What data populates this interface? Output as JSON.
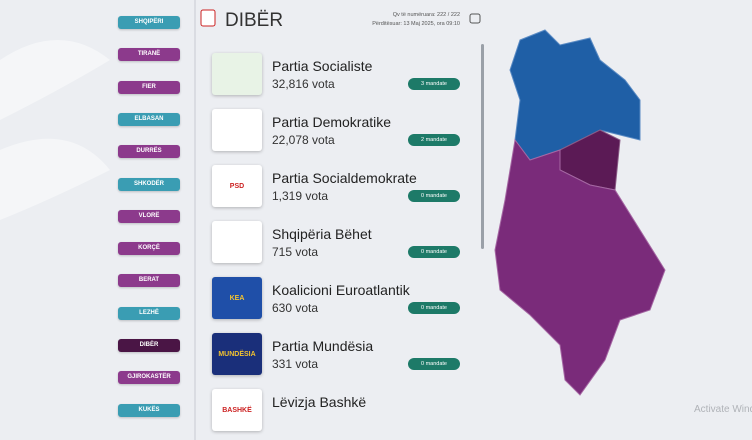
{
  "nav": [
    {
      "label": "SHQIPËRI",
      "kind": "national"
    },
    {
      "label": "TIRANË",
      "kind": "region"
    },
    {
      "label": "FIER",
      "kind": "region"
    },
    {
      "label": "ELBASAN",
      "kind": "national"
    },
    {
      "label": "DURRËS",
      "kind": "region"
    },
    {
      "label": "SHKODËR",
      "kind": "national"
    },
    {
      "label": "VLORË",
      "kind": "region"
    },
    {
      "label": "KORÇË",
      "kind": "region"
    },
    {
      "label": "BERAT",
      "kind": "region"
    },
    {
      "label": "LEZHË",
      "kind": "national"
    },
    {
      "label": "DIBËR",
      "kind": "active"
    },
    {
      "label": "GJIROKASTËR",
      "kind": "region"
    },
    {
      "label": "KUKËS",
      "kind": "national"
    }
  ],
  "header": {
    "title": "DIBËR",
    "counted": "Qv të numëruara: 222 / 222",
    "updated": "Përditësuar: 13 Maj 2025, ora 09:10"
  },
  "parties": [
    {
      "name": "Partia Socialiste",
      "votes": "32,816 vota",
      "mandates": "3 mandate",
      "logo_color": "#e8f3e6"
    },
    {
      "name": "Partia Demokratike",
      "votes": "22,078 vota",
      "mandates": "2 mandate",
      "logo_color": "#ffffff"
    },
    {
      "name": "Partia Socialdemokrate",
      "votes": "1,319 vota",
      "mandates": "0 mandate",
      "logo_color": "#ffffff",
      "logo_text": "PSD"
    },
    {
      "name": "Shqipëria Bëhet",
      "votes": "715 vota",
      "mandates": "0 mandate",
      "logo_color": "#ffffff"
    },
    {
      "name": "Koalicioni Euroatlantik",
      "votes": "630 vota",
      "mandates": "0 mandate",
      "logo_color": "#1f4fa8",
      "logo_text": "KEA"
    },
    {
      "name": "Partia Mundësia",
      "votes": "331 vota",
      "mandates": "0 mandate",
      "logo_color": "#1a2f7a",
      "logo_text": "MUNDËSIA"
    },
    {
      "name": "Lëvizja Bashkë",
      "logo_color": "#ffffff",
      "logo_text": "BASHKË"
    }
  ],
  "watermark": "Activate Windows"
}
